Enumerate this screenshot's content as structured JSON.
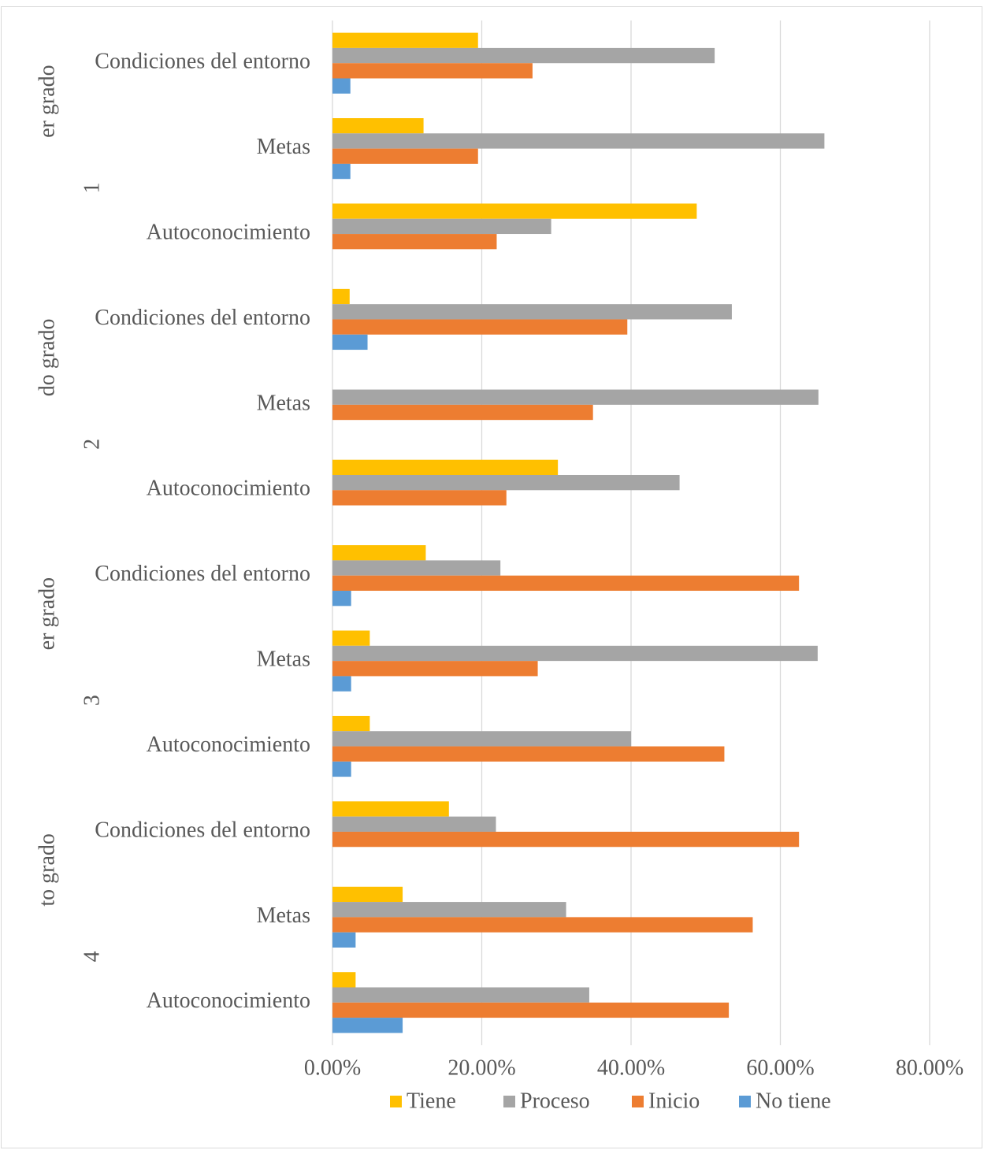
{
  "chart_data": {
    "type": "bar",
    "orientation": "horizontal",
    "groups": [
      {
        "label": "4to grado",
        "label_pieces": [
          "4",
          "to grado"
        ],
        "categories": [
          {
            "label": "Autoconocimiento",
            "values": {
              "Tiene": 3.1,
              "Proceso": 34.4,
              "Inicio": 53.1,
              "No tiene": 9.4
            }
          },
          {
            "label": "Metas",
            "values": {
              "Tiene": 9.4,
              "Proceso": 31.3,
              "Inicio": 56.3,
              "No tiene": 3.1
            }
          },
          {
            "label": "Condiciones del entorno",
            "values": {
              "Tiene": 15.6,
              "Proceso": 21.9,
              "Inicio": 62.5,
              "No tiene": 0
            }
          }
        ]
      },
      {
        "label": "3er grado",
        "label_pieces": [
          "3",
          "er grado"
        ],
        "categories": [
          {
            "label": "Autoconocimiento",
            "values": {
              "Tiene": 5.0,
              "Proceso": 40.0,
              "Inicio": 52.5,
              "No tiene": 2.5
            }
          },
          {
            "label": "Metas",
            "values": {
              "Tiene": 5.0,
              "Proceso": 65.0,
              "Inicio": 27.5,
              "No tiene": 2.5
            }
          },
          {
            "label": "Condiciones del entorno",
            "values": {
              "Tiene": 12.5,
              "Proceso": 22.5,
              "Inicio": 62.5,
              "No tiene": 2.5
            }
          }
        ]
      },
      {
        "label": "2do grado",
        "label_pieces": [
          "2",
          "do grado"
        ],
        "categories": [
          {
            "label": "Autoconocimiento",
            "values": {
              "Tiene": 30.2,
              "Proceso": 46.5,
              "Inicio": 23.3,
              "No tiene": 0
            }
          },
          {
            "label": "Metas",
            "values": {
              "Tiene": 0,
              "Proceso": 65.1,
              "Inicio": 34.9,
              "No tiene": 0
            }
          },
          {
            "label": "Condiciones del entorno",
            "values": {
              "Tiene": 2.3,
              "Proceso": 53.5,
              "Inicio": 39.5,
              "No tiene": 4.7
            }
          }
        ]
      },
      {
        "label": "1er grado",
        "label_pieces": [
          "1",
          "er grado"
        ],
        "categories": [
          {
            "label": "Autoconocimiento",
            "values": {
              "Tiene": 48.8,
              "Proceso": 29.3,
              "Inicio": 22.0,
              "No tiene": 0
            }
          },
          {
            "label": "Metas",
            "values": {
              "Tiene": 12.2,
              "Proceso": 65.9,
              "Inicio": 19.5,
              "No tiene": 2.4
            }
          },
          {
            "label": "Condiciones del entorno",
            "values": {
              "Tiene": 19.5,
              "Proceso": 51.2,
              "Inicio": 26.8,
              "No tiene": 2.4
            }
          }
        ]
      }
    ],
    "series": [
      {
        "name": "Tiene",
        "color": "#FFC000"
      },
      {
        "name": "Proceso",
        "color": "#A5A5A5"
      },
      {
        "name": "Inicio",
        "color": "#ED7D31"
      },
      {
        "name": "No tiene",
        "color": "#5B9BD5"
      }
    ],
    "xlim": [
      0,
      80
    ],
    "xticks": [
      0,
      20,
      40,
      60,
      80
    ],
    "xtick_labels": [
      "0.00%",
      "20.00%",
      "40.00%",
      "60.00%",
      "80.00%"
    ],
    "grid": true,
    "legend_position": "bottom",
    "gridline_color": "#d9d9d9"
  }
}
